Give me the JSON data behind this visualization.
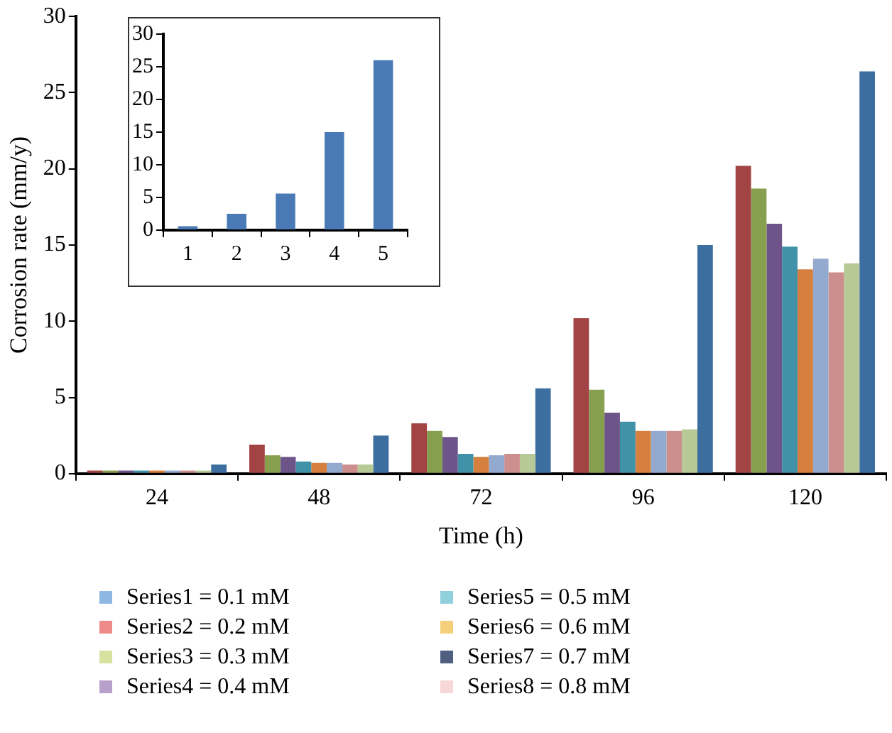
{
  "chart_data": [
    {
      "type": "bar",
      "xlabel": "Time (h)",
      "ylabel": "Corrosion rate (mm/y)",
      "categories": [
        "24",
        "48",
        "72",
        "96",
        "120"
      ],
      "series": [
        {
          "color": "#a24443",
          "values": [
            0.2,
            1.9,
            3.3,
            10.2,
            20.2
          ]
        },
        {
          "color": "#87a04f",
          "values": [
            0.2,
            1.2,
            2.8,
            5.5,
            18.7
          ]
        },
        {
          "color": "#6d5489",
          "values": [
            0.2,
            1.1,
            2.4,
            4.0,
            16.4
          ]
        },
        {
          "color": "#3f92a7",
          "values": [
            0.2,
            0.8,
            1.3,
            3.4,
            14.9
          ]
        },
        {
          "color": "#d5803e",
          "values": [
            0.2,
            0.7,
            1.1,
            2.8,
            13.4
          ]
        },
        {
          "color": "#93a9cd",
          "values": [
            0.2,
            0.7,
            1.2,
            2.8,
            14.1
          ]
        },
        {
          "color": "#cc8f8e",
          "values": [
            0.2,
            0.6,
            1.3,
            2.8,
            13.2
          ]
        },
        {
          "color": "#b6c996",
          "values": [
            0.2,
            0.6,
            1.3,
            2.9,
            13.8
          ]
        },
        {
          "color": "#3c6e9f",
          "values": [
            0.6,
            2.5,
            5.6,
            15.0,
            26.4
          ]
        }
      ],
      "ylim": [
        0,
        30
      ],
      "yticks": [
        0,
        5,
        10,
        15,
        20,
        25,
        30
      ],
      "grid": false,
      "legend": false,
      "annotations": [
        "Series1 = 0.1 mM",
        "Series2 = 0.2 mM",
        "Series3 = 0.3 mM",
        "Series4 = 0.4 mM",
        "Series5 = 0.5 mM",
        "Series6 = 0.6 mM",
        "Series7 = 0.7 mM",
        "Series8 = 0.8 mM"
      ]
    },
    {
      "type": "bar",
      "categories": [
        "1",
        "2",
        "3",
        "4",
        "5"
      ],
      "color": "#4a7ab5",
      "values": [
        0.6,
        2.5,
        5.6,
        15,
        26
      ],
      "ylim": [
        0,
        30
      ],
      "yticks": [
        0,
        5,
        10,
        15,
        20,
        25,
        30
      ],
      "grid": false,
      "legend": false
    }
  ]
}
